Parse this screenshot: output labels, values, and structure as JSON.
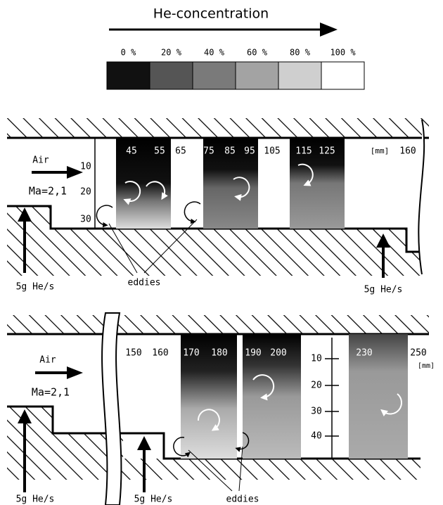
{
  "legend": {
    "title": "He-concentration",
    "labels": [
      "0 %",
      "20 %",
      "40 %",
      "60 %",
      "80 %",
      "100 %"
    ],
    "colors": [
      "#111111",
      "#555555",
      "#7a7a7a",
      "#a3a3a3",
      "#cfcfcf",
      "#ffffff"
    ]
  },
  "top_panel": {
    "flow": "Air",
    "mach": "Ma=2,1",
    "x_labels": [
      "45",
      "55",
      "65",
      "75",
      "85",
      "95",
      "105",
      "115",
      "125"
    ],
    "unit": "[mm]",
    "x_end": "160",
    "y_labels": [
      "10",
      "20",
      "30"
    ],
    "injection_left": "5g He/s",
    "injection_right": "5g He/s",
    "eddies": "eddies"
  },
  "bottom_panel": {
    "flow": "Air",
    "mach": "Ma=2,1",
    "x_labels": [
      "150",
      "160",
      "170",
      "180",
      "190",
      "200",
      "230",
      "250"
    ],
    "unit": "[mm]",
    "y_labels": [
      "10",
      "20",
      "30",
      "40"
    ],
    "injection_left": "5g He/s",
    "injection_middle": "5g He/s",
    "eddies": "eddies"
  }
}
